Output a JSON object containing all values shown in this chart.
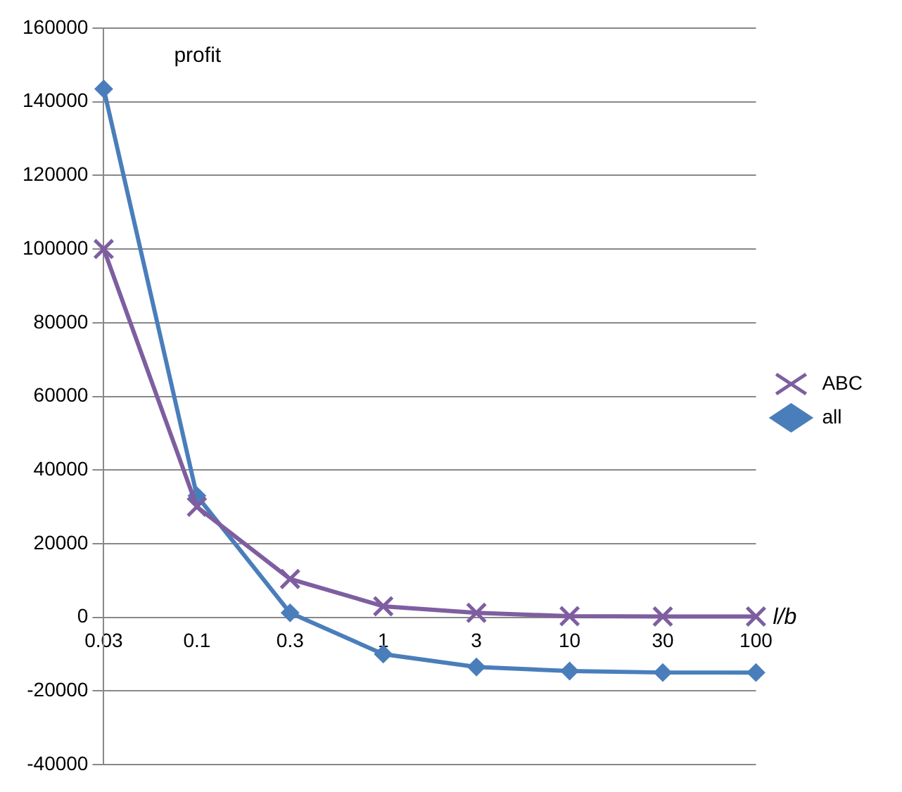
{
  "chart_data": {
    "type": "line",
    "xlabel": "l/b",
    "annotations": [
      "profit"
    ],
    "categories": [
      "0.03",
      "0.1",
      "0.3",
      "1",
      "3",
      "10",
      "30",
      "100"
    ],
    "series": [
      {
        "name": "all",
        "color": "#4a7ebb",
        "marker": "diamond",
        "values": [
          143500,
          33000,
          1200,
          -10000,
          -13500,
          -14600,
          -15000,
          -15000
        ]
      },
      {
        "name": "ABC",
        "color": "#7e5ea0",
        "marker": "cross",
        "values": [
          100000,
          30000,
          10400,
          3000,
          1200,
          300,
          200,
          200
        ]
      }
    ],
    "ylim": [
      -40000,
      160000
    ],
    "yticks": [
      -40000,
      -20000,
      0,
      20000,
      40000,
      60000,
      80000,
      100000,
      120000,
      140000,
      160000
    ],
    "grid": "y",
    "legend": "right"
  }
}
